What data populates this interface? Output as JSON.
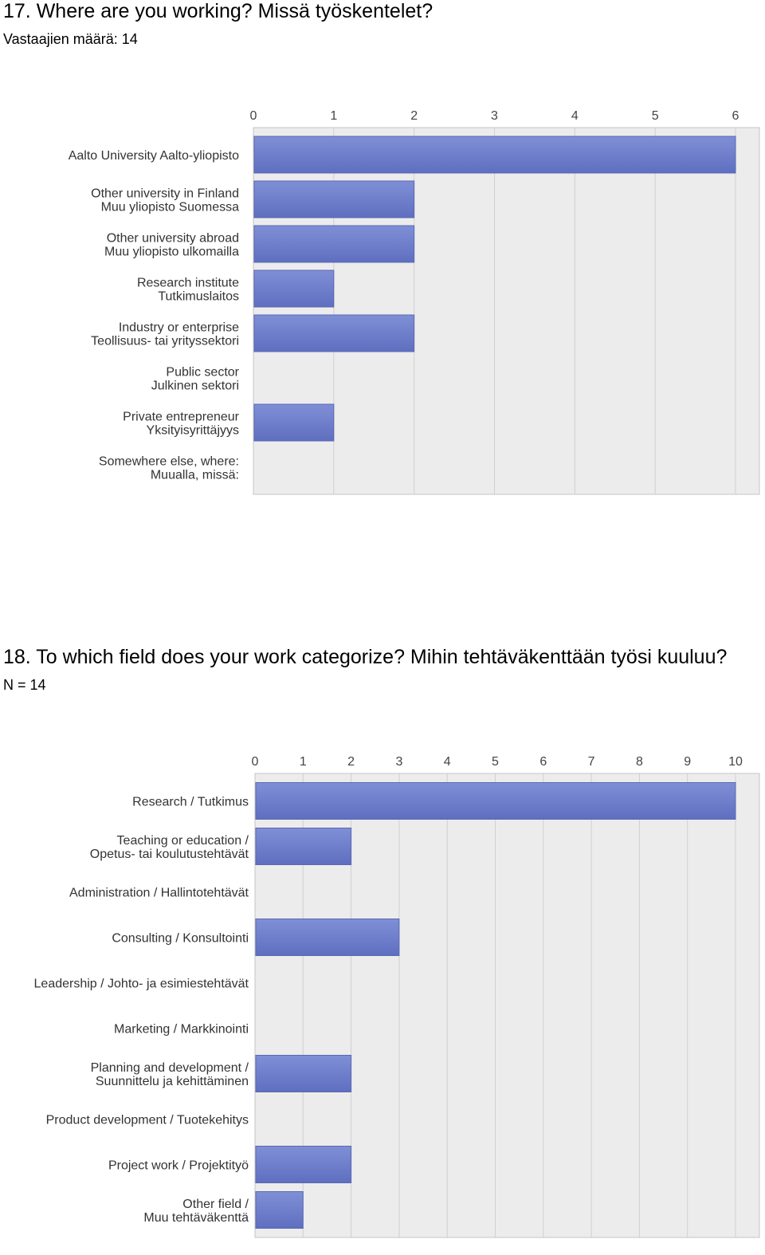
{
  "q17": {
    "title": "17. Where are you working? Missä työskentelet?",
    "subtitle": "Vastaajien määrä: 14"
  },
  "q18": {
    "title": "18. To which field does your work categorize? Mihin tehtäväkenttään työsi kuuluu?",
    "subtitle": "N = 14"
  },
  "chart_data": [
    {
      "type": "bar",
      "orientation": "horizontal",
      "categories": [
        [
          "Aalto University Aalto-yliopisto"
        ],
        [
          "Other university in Finland",
          "Muu yliopisto Suomessa"
        ],
        [
          "Other university abroad",
          "Muu yliopisto ulkomailla"
        ],
        [
          "Research institute",
          "Tutkimuslaitos"
        ],
        [
          "Industry or enterprise",
          "Teollisuus- tai yrityssektori"
        ],
        [
          "Public sector",
          "Julkinen sektori"
        ],
        [
          "Private entrepreneur",
          "Yksityisyrittäjyys"
        ],
        [
          "Somewhere else, where:",
          "Muualla, missä:"
        ]
      ],
      "values": [
        6,
        2,
        2,
        1,
        2,
        0,
        1,
        0
      ],
      "xlim": [
        0,
        6
      ],
      "ticks": [
        "0",
        "1",
        "2",
        "3",
        "4",
        "5",
        "6"
      ],
      "grid": true,
      "colors": {
        "bar": "#7f8fd6",
        "bar_dark": "#5f6fc0",
        "plot_bg": "#ececec",
        "grid": "#d0d0d0"
      }
    },
    {
      "type": "bar",
      "orientation": "horizontal",
      "categories": [
        [
          "Research / Tutkimus"
        ],
        [
          "Teaching or education /",
          "Opetus- tai koulutustehtävät"
        ],
        [
          "Administration / Hallintotehtävät"
        ],
        [
          "Consulting / Konsultointi"
        ],
        [
          "Leadership / Johto- ja esimiestehtävät"
        ],
        [
          "Marketing / Markkinointi"
        ],
        [
          "Planning and development /",
          "Suunnittelu ja kehittäminen"
        ],
        [
          "Product development / Tuotekehitys"
        ],
        [
          "Project work / Projektityö"
        ],
        [
          "Other field /",
          "Muu tehtäväkenttä"
        ]
      ],
      "values": [
        10,
        2,
        0,
        3,
        0,
        0,
        2,
        0,
        2,
        1
      ],
      "xlim": [
        0,
        10
      ],
      "ticks": [
        "0",
        "1",
        "2",
        "3",
        "4",
        "5",
        "6",
        "7",
        "8",
        "9",
        "10"
      ],
      "grid": true,
      "colors": {
        "bar": "#7f8fd6",
        "bar_dark": "#5f6fc0",
        "plot_bg": "#ececec",
        "grid": "#d0d0d0"
      }
    }
  ]
}
